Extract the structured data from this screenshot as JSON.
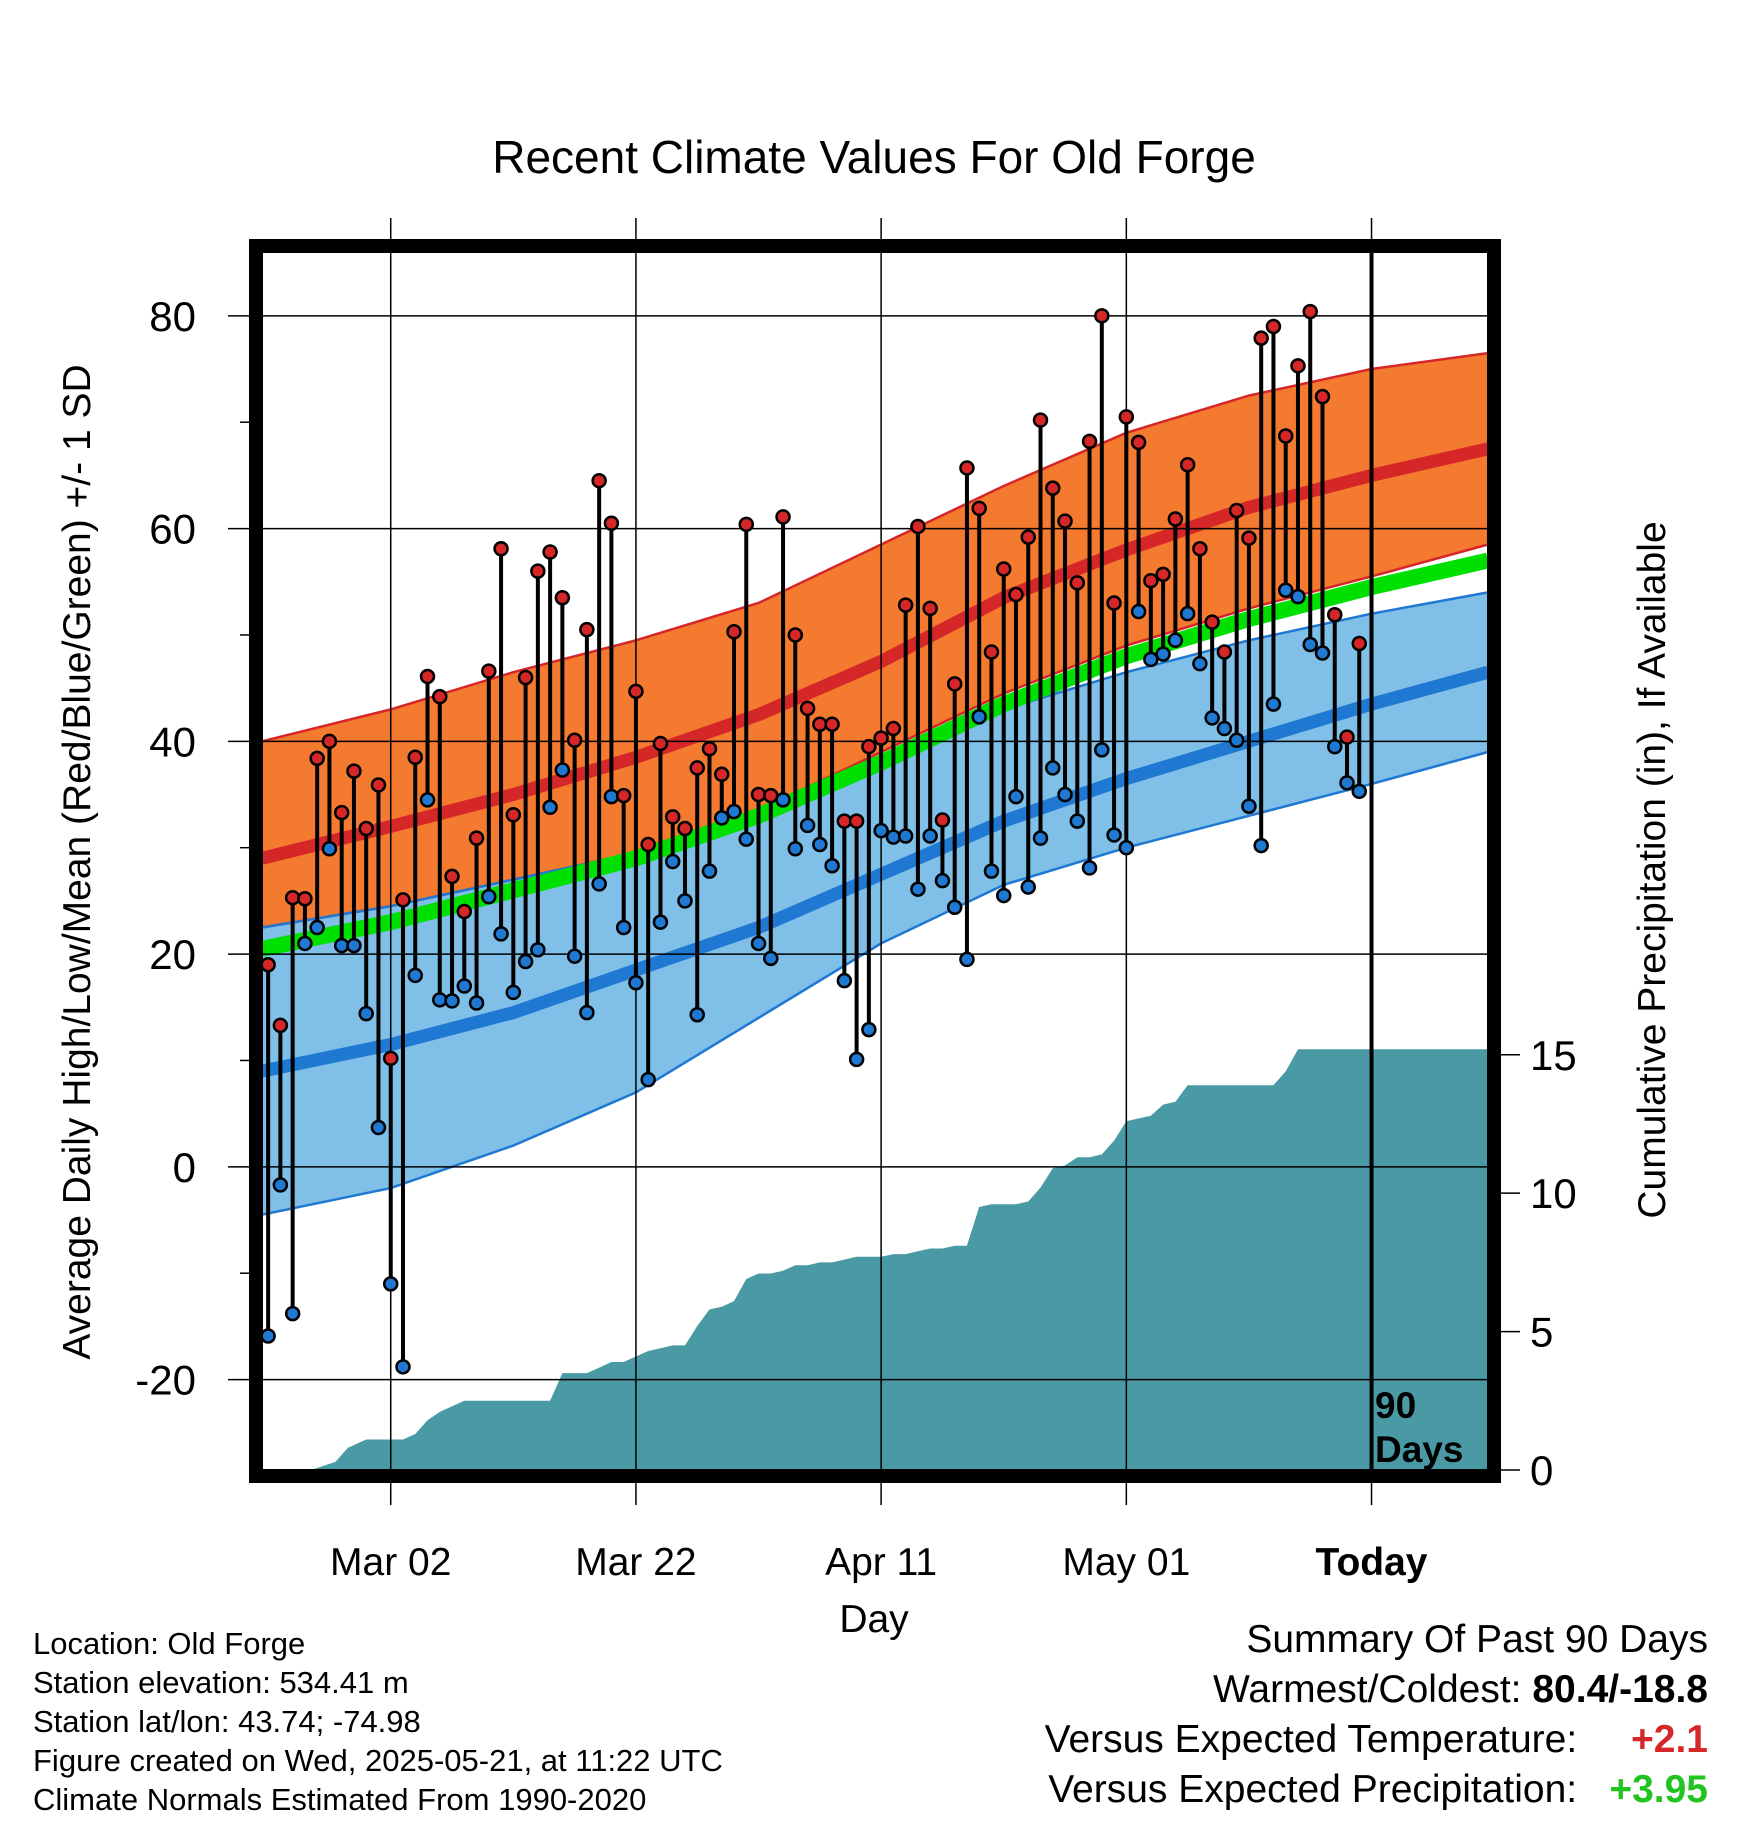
{
  "chart_data": {
    "type": "line",
    "title": "Recent Climate Values For Old Forge",
    "xlabel": "Day",
    "ylabel": "Average Daily High/Low/Mean (Red/Blue/Green) +/- 1 SD",
    "y2label": "Cumulative Precipitation (in), If Available",
    "ylim": [
      -28.5,
      86
    ],
    "y2lim": [
      0,
      44.0
    ],
    "xlim": [
      -10.5,
      89.5
    ],
    "x_ticks": [
      {
        "day": 0,
        "label": "Mar 02"
      },
      {
        "day": 20,
        "label": "Mar 22"
      },
      {
        "day": 40,
        "label": "Apr 11"
      },
      {
        "day": 60,
        "label": "May 01"
      },
      {
        "day": 80,
        "label": "Today"
      }
    ],
    "y_ticks": [
      -20,
      0,
      20,
      40,
      60,
      80
    ],
    "y2_ticks": [
      0,
      5,
      10,
      15
    ],
    "grid": true,
    "annotation": {
      "line1": "90",
      "line2": "Days",
      "day": 80
    },
    "colors": {
      "high": "#d62728",
      "low": "#1f78d1",
      "mean": "#00e000",
      "high_band": "#f47a30",
      "low_band": "#7fbfe8",
      "precip": "#4a9aa5"
    },
    "normals": {
      "x": [
        -10.5,
        0,
        10,
        20,
        30,
        40,
        50,
        60,
        70,
        80,
        89.5
      ],
      "high_mean": [
        29,
        32,
        35,
        38.5,
        42.5,
        47.5,
        53.5,
        58,
        62,
        65,
        67.5
      ],
      "high_upper": [
        40,
        43,
        46.5,
        49.5,
        53,
        58.5,
        64,
        69,
        72.5,
        75,
        76.5
      ],
      "high_lower": [
        22.5,
        24.5,
        27,
        29.5,
        33.5,
        39,
        44.5,
        49,
        52.5,
        55.5,
        58.5
      ],
      "low_mean": [
        9,
        11.5,
        14.5,
        18.5,
        22.5,
        27.5,
        32.5,
        36.5,
        40,
        43.5,
        46.5
      ],
      "low_upper": [
        22.5,
        24.5,
        27,
        29.5,
        33.5,
        38.5,
        43,
        46.5,
        49.5,
        52,
        54
      ],
      "low_lower": [
        -4.5,
        -2,
        2,
        7,
        14,
        21,
        26.5,
        30,
        33,
        36,
        39
      ],
      "mean_mean": [
        20.5,
        23,
        26,
        29,
        33,
        38,
        43.5,
        48,
        51.5,
        54.5,
        57
      ]
    },
    "series": [
      {
        "name": "High",
        "values": [
          19,
          13.3,
          25.3,
          25.2,
          38.4,
          40,
          33.3,
          37.2,
          31.8,
          35.9,
          10.2,
          25.1,
          38.5,
          46.1,
          44.2,
          27.3,
          24,
          30.9,
          46.6,
          58.1,
          33.1,
          46,
          56,
          57.8,
          53.5,
          40.1,
          50.5,
          64.5,
          60.5,
          34.9,
          44.7,
          30.3,
          39.8,
          32.9,
          31.8,
          37.5,
          39.3,
          36.9,
          50.3,
          60.4,
          35,
          34.9,
          61.1,
          50,
          43.1,
          41.6,
          41.6,
          32.5,
          32.5,
          39.5,
          40.3,
          41.2,
          52.8,
          60.2,
          52.5,
          32.6,
          45.4,
          65.7,
          61.9,
          48.4,
          56.2,
          53.8,
          59.2,
          70.2,
          63.8,
          60.7,
          54.9,
          68.2,
          80,
          53,
          70.5,
          68.1,
          55.1,
          55.7,
          60.9,
          66,
          58.1,
          51.2,
          48.4,
          61.7,
          59.1,
          77.9,
          79,
          68.7,
          75.3,
          80.4,
          72.4,
          51.9,
          40.4,
          49.2
        ]
      },
      {
        "name": "Low",
        "values": [
          -15.9,
          -1.7,
          -13.8,
          21,
          22.5,
          29.9,
          20.8,
          20.8,
          14.4,
          3.7,
          -11,
          -18.8,
          18,
          34.5,
          15.7,
          15.6,
          17,
          15.4,
          25.4,
          21.9,
          16.4,
          19.3,
          20.4,
          33.8,
          37.3,
          19.8,
          14.5,
          26.6,
          34.8,
          22.5,
          17.3,
          8.2,
          23,
          28.7,
          25,
          14.3,
          27.8,
          32.8,
          33.4,
          30.8,
          21,
          19.6,
          34.5,
          29.9,
          32.1,
          30.3,
          28.3,
          17.5,
          10.1,
          12.9,
          31.6,
          31,
          31.1,
          26.1,
          31.1,
          26.9,
          24.4,
          19.5,
          42.3,
          27.8,
          25.5,
          34.8,
          26.3,
          30.9,
          37.5,
          35,
          32.5,
          28.1,
          39.2,
          31.2,
          30,
          52.2,
          47.7,
          48.2,
          49.5,
          52,
          47.3,
          42.2,
          41.2,
          40.1,
          33.9,
          30.2,
          43.5,
          54.2,
          53.6,
          49.1,
          48.3,
          39.5,
          36.1,
          35.3
        ]
      },
      {
        "name": "Cumulative Precipitation",
        "x": [
          -10.5,
          -6.5,
          -4.5,
          -3.5,
          -2,
          0,
          1,
          2,
          3,
          4,
          5,
          6,
          7,
          8,
          9,
          10,
          11,
          12,
          13,
          14,
          15,
          16,
          17,
          18,
          19,
          20,
          21,
          22,
          23,
          24,
          25,
          26,
          27,
          28,
          29,
          30,
          31,
          32,
          33,
          34,
          35,
          36,
          37,
          38,
          39,
          40,
          41,
          42,
          43,
          44,
          45,
          46,
          47,
          48,
          49,
          50,
          51,
          52,
          53,
          54,
          55,
          56,
          57,
          58,
          59,
          60,
          61,
          62,
          63,
          64,
          65,
          66,
          67,
          68,
          69,
          70,
          71,
          72,
          73,
          74,
          75,
          76,
          77,
          78,
          79,
          80,
          81,
          89.5
        ],
        "values": [
          0,
          0,
          0.3,
          0.8,
          1.1,
          1.1,
          1.1,
          1.3,
          1.8,
          2.1,
          2.3,
          2.5,
          2.5,
          2.5,
          2.5,
          2.5,
          2.5,
          2.5,
          2.5,
          3.5,
          3.5,
          3.5,
          3.7,
          3.9,
          3.9,
          4.1,
          4.3,
          4.4,
          4.5,
          4.5,
          5.2,
          5.8,
          5.9,
          6.1,
          6.9,
          7.1,
          7.1,
          7.2,
          7.4,
          7.4,
          7.5,
          7.5,
          7.6,
          7.7,
          7.7,
          7.7,
          7.8,
          7.8,
          7.9,
          8.0,
          8.0,
          8.1,
          8.1,
          9.5,
          9.6,
          9.6,
          9.6,
          9.7,
          10.2,
          10.9,
          11.0,
          11.3,
          11.3,
          11.4,
          11.9,
          12.6,
          12.7,
          12.8,
          13.2,
          13.3,
          13.9,
          13.9,
          13.9,
          13.9,
          13.9,
          13.9,
          13.9,
          13.9,
          14.4,
          15.2,
          15.2,
          15.2,
          15.2,
          15.2,
          15.2,
          15.2,
          15.2,
          15.2
        ]
      }
    ]
  },
  "info": {
    "location": "Location: Old Forge",
    "elevation": "Station elevation: 534.41 m",
    "latlon": "Station lat/lon: 43.74; -74.98",
    "created": "Figure created on Wed, 2025-05-21, at 11:22 UTC",
    "normals": "Climate Normals Estimated From 1990-2020"
  },
  "summary": {
    "title": "Summary Of Past 90 Days",
    "extremes_label": "Warmest/Coldest:",
    "extremes_value": "80.4/-18.8",
    "temp_label": "Versus Expected Temperature:",
    "temp_value": "+2.1",
    "temp_color": "#d62728",
    "precip_label": "Versus Expected Precipitation:",
    "precip_value": "+3.95",
    "precip_color": "#22c422"
  }
}
